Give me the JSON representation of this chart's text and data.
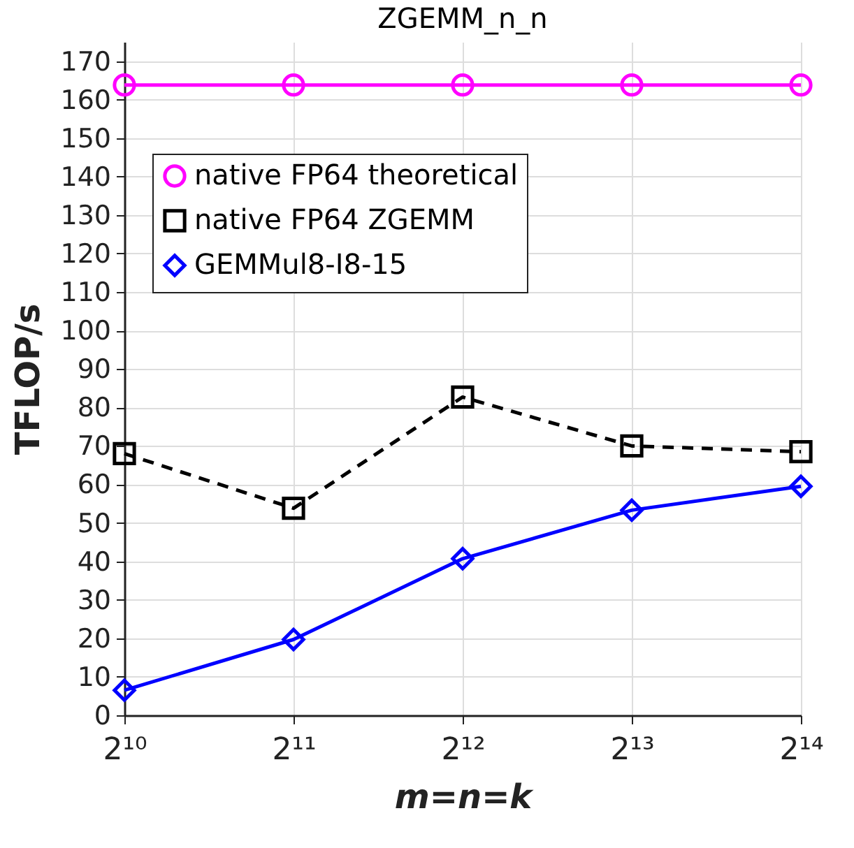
{
  "chart_data": {
    "type": "line",
    "title": "ZGEMM_n_n",
    "xlabel": "m=n=k",
    "ylabel": "TFLOP/s",
    "x": [
      1024,
      2048,
      4096,
      8192,
      16384
    ],
    "series": [
      {
        "name": "native FP64 theoretical",
        "color": "#ff00ff",
        "marker": "circle",
        "line_style": "solid",
        "values": [
          163.8,
          163.8,
          163.8,
          163.8,
          163.8
        ]
      },
      {
        "name": "native FP64 ZGEMM",
        "color": "#000000",
        "marker": "square",
        "line_style": "dashed",
        "values": [
          68,
          53.8,
          82.7,
          70,
          68.5
        ]
      },
      {
        "name": "GEMMul8-I8-15",
        "color": "#0000ff",
        "marker": "diamond",
        "line_style": "solid",
        "values": [
          6.5,
          19.7,
          40.7,
          53.3,
          59.5
        ]
      }
    ],
    "log": "x",
    "xlim": [
      1024,
      16384
    ],
    "xticks": [
      {
        "value": 1024,
        "label": "2¹⁰"
      },
      {
        "value": 2048,
        "label": "2¹¹"
      },
      {
        "value": 4096,
        "label": "2¹²"
      },
      {
        "value": 8192,
        "label": "2¹³"
      },
      {
        "value": 16384,
        "label": "2¹⁴"
      }
    ],
    "ylim": [
      0,
      175
    ],
    "yticks": [
      0,
      10,
      20,
      30,
      40,
      50,
      60,
      70,
      80,
      90,
      100,
      110,
      120,
      130,
      140,
      150,
      160,
      170
    ],
    "grid": true,
    "legend": "top left"
  }
}
